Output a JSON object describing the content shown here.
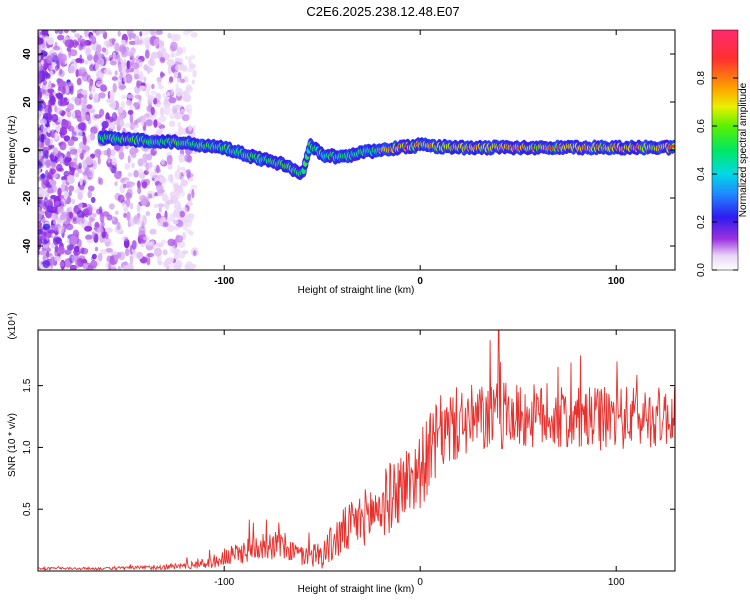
{
  "title": "C2E6.2025.238.12.48.E07",
  "chart_data": [
    {
      "type": "heatmap",
      "xlabel": "Height of straight line (km)",
      "ylabel": "Frequency (Hz)",
      "xlim": [
        -195,
        130
      ],
      "ylim": [
        -50,
        50
      ],
      "xticks": [
        -100,
        0,
        100
      ],
      "yticks": [
        -40,
        -20,
        0,
        20,
        40
      ],
      "colorbar": {
        "label": "Normalized spectral amplitude",
        "range": [
          0,
          1
        ],
        "ticks": [
          0.0,
          0.2,
          0.4,
          0.6,
          0.8
        ]
      },
      "ridge": {
        "description_points_x": [
          -162,
          -140,
          -120,
          -100,
          -85,
          -70,
          -60,
          -56,
          -50,
          -40,
          -30,
          -20,
          0,
          20,
          60,
          100,
          130
        ],
        "description_points_y": [
          5,
          4,
          3,
          1,
          -3,
          -6,
          -10,
          2,
          -2,
          -3,
          -1,
          0,
          2,
          1,
          1,
          1,
          1
        ]
      }
    },
    {
      "type": "line",
      "xlabel": "Height of straight line (km)",
      "ylabel": "SNR (10 * v/v)",
      "scale_note": "(x10⁴)",
      "color": "#e8302c",
      "xlim": [
        -195,
        130
      ],
      "ylim": [
        0,
        1.95
      ],
      "xticks": [
        -100,
        0,
        100
      ],
      "yticks": [
        0.5,
        1.0,
        1.5
      ],
      "ytick_labels": [
        "0.5",
        "1.0",
        "1.5"
      ],
      "envelope": {
        "x": [
          -195,
          -160,
          -130,
          -110,
          -100,
          -90,
          -80,
          -70,
          -60,
          -50,
          -40,
          -30,
          -20,
          -10,
          0,
          10,
          20,
          40,
          60,
          80,
          100,
          130
        ],
        "mean": [
          0.02,
          0.02,
          0.03,
          0.06,
          0.1,
          0.16,
          0.22,
          0.2,
          0.12,
          0.14,
          0.3,
          0.42,
          0.52,
          0.68,
          0.82,
          1.1,
          1.2,
          1.25,
          1.25,
          1.22,
          1.24,
          1.25
        ],
        "spread": [
          0.01,
          0.01,
          0.02,
          0.04,
          0.07,
          0.1,
          0.12,
          0.12,
          0.08,
          0.12,
          0.2,
          0.22,
          0.28,
          0.3,
          0.32,
          0.32,
          0.3,
          0.28,
          0.26,
          0.26,
          0.26,
          0.24
        ],
        "peak_max": 1.95,
        "peak_x": 40
      }
    }
  ]
}
